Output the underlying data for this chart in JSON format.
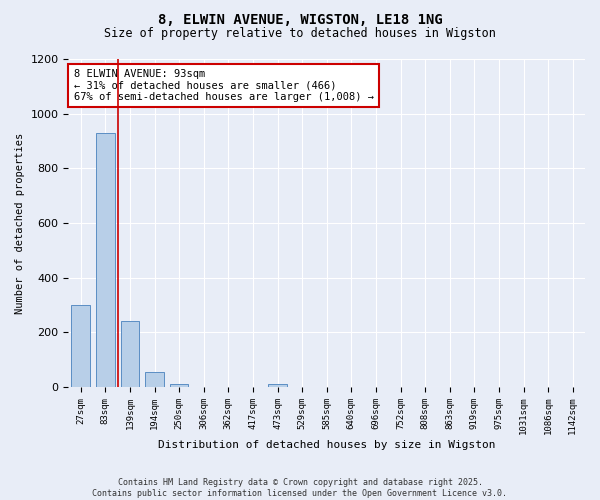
{
  "title": "8, ELWIN AVENUE, WIGSTON, LE18 1NG",
  "subtitle": "Size of property relative to detached houses in Wigston",
  "xlabel": "Distribution of detached houses by size in Wigston",
  "ylabel": "Number of detached properties",
  "categories": [
    "27sqm",
    "83sqm",
    "139sqm",
    "194sqm",
    "250sqm",
    "306sqm",
    "362sqm",
    "417sqm",
    "473sqm",
    "529sqm",
    "585sqm",
    "640sqm",
    "696sqm",
    "752sqm",
    "808sqm",
    "863sqm",
    "919sqm",
    "975sqm",
    "1031sqm",
    "1086sqm",
    "1142sqm"
  ],
  "values": [
    300,
    930,
    240,
    55,
    12,
    0,
    0,
    0,
    12,
    0,
    0,
    0,
    0,
    0,
    0,
    0,
    0,
    0,
    0,
    0,
    0
  ],
  "bar_color": "#b8cfe8",
  "bar_edge_color": "#5b8ec4",
  "bg_color": "#e8edf7",
  "grid_color": "#ffffff",
  "vline_x_index": 1.5,
  "vline_color": "#cc0000",
  "annotation_text": "8 ELWIN AVENUE: 93sqm\n← 31% of detached houses are smaller (466)\n67% of semi-detached houses are larger (1,008) →",
  "annotation_box_color": "#ffffff",
  "annotation_box_edge": "#cc0000",
  "ylim": [
    0,
    1200
  ],
  "yticks": [
    0,
    200,
    400,
    600,
    800,
    1000,
    1200
  ],
  "title_fontsize": 10,
  "subtitle_fontsize": 8.5,
  "footer1": "Contains HM Land Registry data © Crown copyright and database right 2025.",
  "footer2": "Contains public sector information licensed under the Open Government Licence v3.0."
}
